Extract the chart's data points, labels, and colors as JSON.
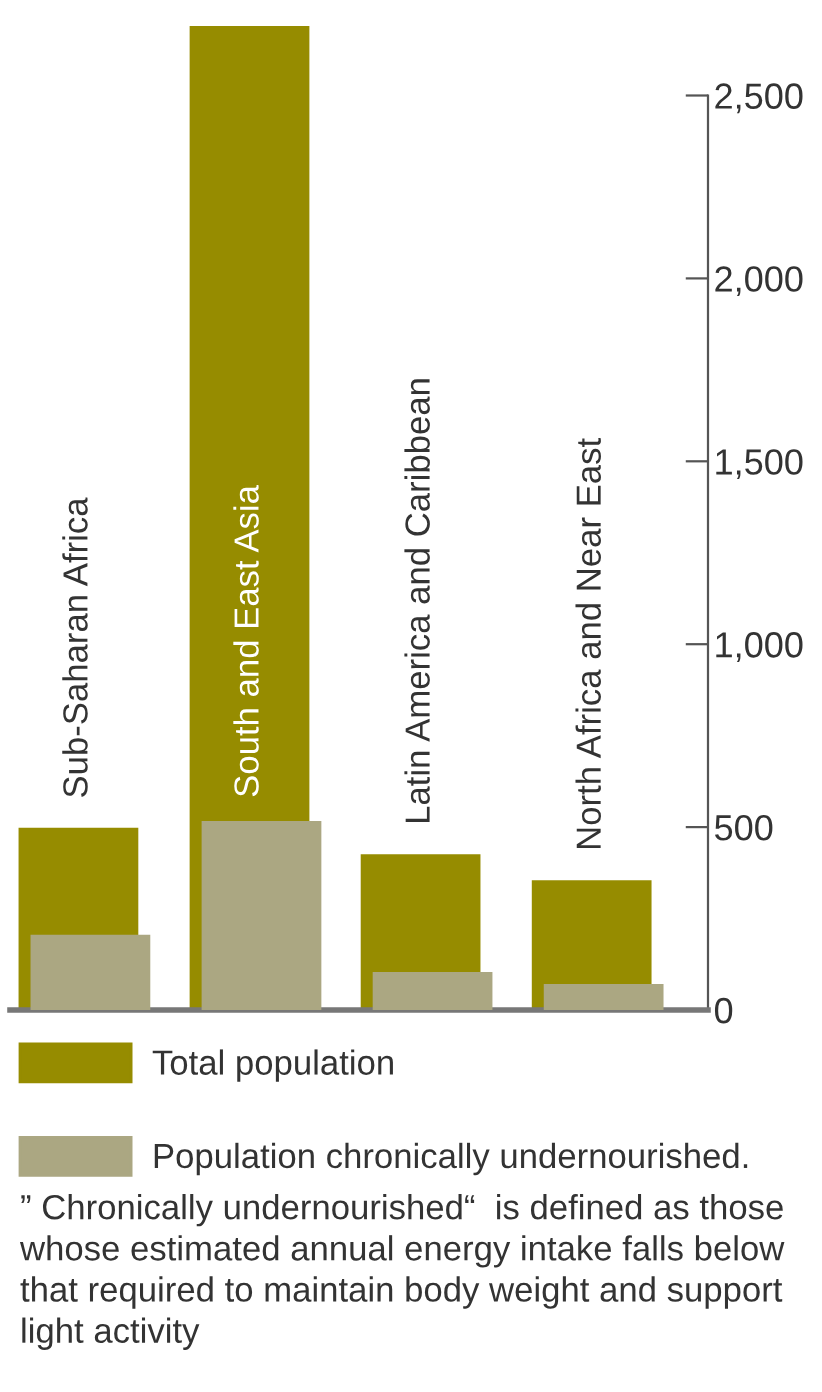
{
  "chart_data": {
    "type": "bar",
    "categories": [
      "Sub-Saharan Africa",
      "South and East Asia",
      "Latin America and Caribbean",
      "North Africa and Near East"
    ],
    "series": [
      {
        "name": "Total population",
        "color": "#968c00",
        "values": [
          498,
          2690,
          426,
          355
        ]
      },
      {
        "name": "Population chronically undernourished.",
        "color": "#aba782",
        "values": [
          206,
          517,
          104,
          71
        ]
      }
    ],
    "ylim": [
      0,
      2690
    ],
    "yticks": [
      0,
      {
        "value": 500,
        "label": "500"
      },
      {
        "value": 1000,
        "label": "1,000"
      },
      {
        "value": 1500,
        "label": "1,500"
      },
      {
        "value": 2000,
        "label": "2,000"
      },
      {
        "value": 2500,
        "label": "2,500"
      }
    ],
    "grid": false,
    "legend": "bottom",
    "annotations": [
      "” Chronically undernourished“  is defined as those whose estimated annual energy intake falls below that required to maintain body weight and support light activity"
    ]
  }
}
